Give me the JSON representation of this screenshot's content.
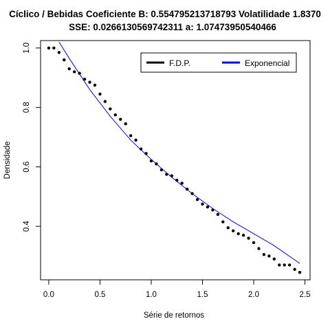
{
  "chart_data": {
    "type": "scatter",
    "title_line1": "Cíclico / Bebidas Coeficiente B:  0.554795213718793 Volatilidade 1.8370",
    "title_line2": "SSE: 0.0266130569742311  a:  1.07473950540466",
    "xlabel": "Série de retornos",
    "ylabel": "Densidade",
    "xlim": [
      -0.08,
      2.55
    ],
    "ylim": [
      0.22,
      1.025
    ],
    "x_ticks": [
      0.0,
      0.5,
      1.0,
      1.5,
      2.0,
      2.5
    ],
    "x_tick_labels": [
      "0.0",
      "0.5",
      "1.0",
      "1.5",
      "2.0",
      "2.5"
    ],
    "y_ticks": [
      0.4,
      0.6,
      0.8,
      1.0
    ],
    "y_tick_labels": [
      "0.4",
      "0.6",
      "0.8",
      "1.0"
    ],
    "legend": {
      "position": "top-right",
      "items": [
        {
          "label": "F.D.P.",
          "color": "#000000"
        },
        {
          "label": "Exponencial",
          "color": "#0000ff"
        }
      ]
    },
    "series": [
      {
        "name": "F.D.P.",
        "style": "points",
        "color": "#000000",
        "x": [
          0.0,
          0.05,
          0.1,
          0.15,
          0.2,
          0.25,
          0.3,
          0.35,
          0.4,
          0.45,
          0.5,
          0.55,
          0.6,
          0.65,
          0.7,
          0.75,
          0.8,
          0.85,
          0.9,
          0.95,
          1.0,
          1.05,
          1.1,
          1.15,
          1.2,
          1.25,
          1.3,
          1.35,
          1.4,
          1.45,
          1.5,
          1.55,
          1.6,
          1.65,
          1.7,
          1.75,
          1.8,
          1.85,
          1.9,
          1.95,
          2.0,
          2.05,
          2.1,
          2.15,
          2.2,
          2.25,
          2.3,
          2.35,
          2.4,
          2.45
        ],
        "y": [
          1.0,
          1.0,
          0.985,
          0.96,
          0.93,
          0.92,
          0.915,
          0.895,
          0.885,
          0.875,
          0.845,
          0.82,
          0.795,
          0.775,
          0.76,
          0.745,
          0.705,
          0.69,
          0.66,
          0.645,
          0.62,
          0.61,
          0.59,
          0.575,
          0.57,
          0.555,
          0.545,
          0.525,
          0.51,
          0.49,
          0.475,
          0.465,
          0.455,
          0.44,
          0.415,
          0.395,
          0.385,
          0.375,
          0.37,
          0.36,
          0.345,
          0.325,
          0.305,
          0.3,
          0.29,
          0.27,
          0.27,
          0.27,
          0.255,
          0.245
        ]
      },
      {
        "name": "Exponencial",
        "style": "line",
        "color": "#0000ff",
        "x": [
          0.1,
          0.2,
          0.4,
          0.6,
          0.8,
          1.0,
          1.2,
          1.4,
          1.6,
          1.8,
          2.0,
          2.2,
          2.45
        ],
        "y": [
          1.02,
          0.965,
          0.86,
          0.77,
          0.69,
          0.625,
          0.565,
          0.51,
          0.46,
          0.415,
          0.375,
          0.335,
          0.275
        ]
      }
    ]
  }
}
